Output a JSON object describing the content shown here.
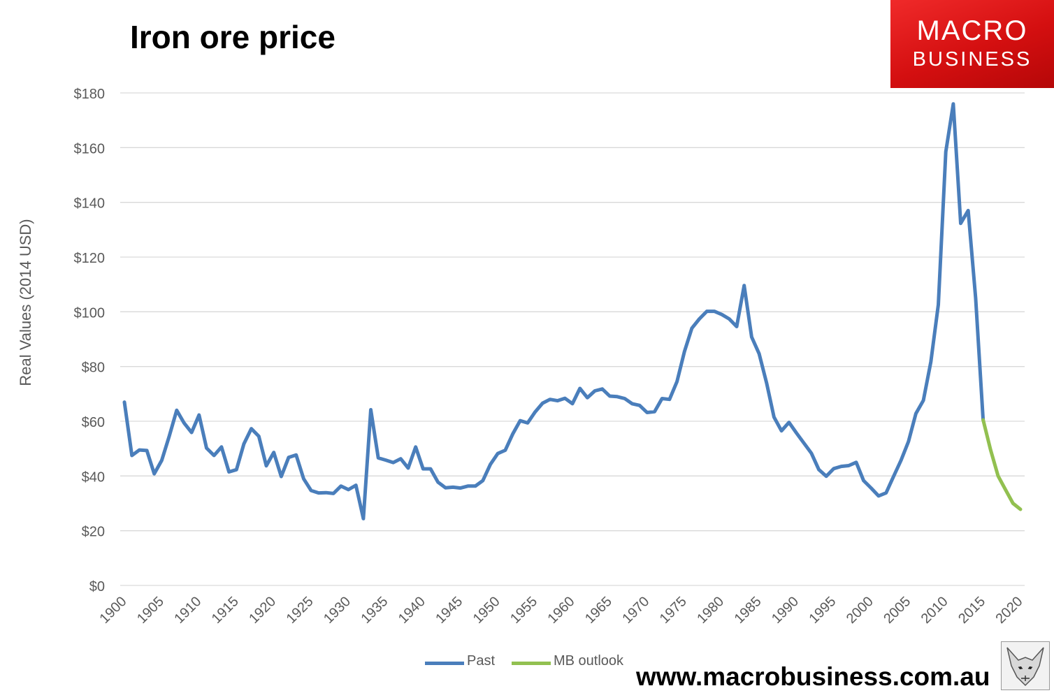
{
  "chart_data": {
    "type": "line",
    "title": "Iron ore price",
    "ylabel": "Real Values (2014 USD)",
    "xlabel": "",
    "xlim": [
      1900,
      2020
    ],
    "ylim": [
      0,
      180
    ],
    "ytick_step": 20,
    "ytick_labels": [
      "$0",
      "$20",
      "$40",
      "$60",
      "$80",
      "$100",
      "$120",
      "$140",
      "$160",
      "$180"
    ],
    "xtick_labels": [
      "1900",
      "1905",
      "1910",
      "1915",
      "1920",
      "1925",
      "1930",
      "1935",
      "1940",
      "1945",
      "1950",
      "1955",
      "1960",
      "1965",
      "1970",
      "1975",
      "1980",
      "1985",
      "1990",
      "1995",
      "2000",
      "2005",
      "2010",
      "2015",
      "2020"
    ],
    "grid": true,
    "legend_position": "bottom",
    "series": [
      {
        "name": "Past",
        "color": "#4a7ebb",
        "x": [
          1900,
          1901,
          1902,
          1903,
          1904,
          1905,
          1906,
          1907,
          1908,
          1909,
          1910,
          1911,
          1912,
          1913,
          1914,
          1915,
          1916,
          1917,
          1918,
          1919,
          1920,
          1921,
          1922,
          1923,
          1924,
          1925,
          1926,
          1927,
          1928,
          1929,
          1930,
          1931,
          1932,
          1933,
          1934,
          1935,
          1936,
          1937,
          1938,
          1939,
          1940,
          1941,
          1942,
          1943,
          1944,
          1945,
          1946,
          1947,
          1948,
          1949,
          1950,
          1951,
          1952,
          1953,
          1954,
          1955,
          1956,
          1957,
          1958,
          1959,
          1960,
          1961,
          1962,
          1963,
          1964,
          1965,
          1966,
          1967,
          1968,
          1969,
          1970,
          1971,
          1972,
          1973,
          1974,
          1975,
          1976,
          1977,
          1978,
          1979,
          1980,
          1981,
          1982,
          1983,
          1984,
          1985,
          1986,
          1987,
          1988,
          1989,
          1990,
          1991,
          1992,
          1993,
          1994,
          1995,
          1996,
          1997,
          1998,
          1999,
          2000,
          2001,
          2002,
          2003,
          2004,
          2005,
          2006,
          2007,
          2008,
          2009,
          2010,
          2011,
          2012,
          2013,
          2014,
          2015
        ],
        "values": [
          67,
          47.5,
          49.5,
          49.3,
          40.8,
          45.7,
          54.5,
          64,
          59.3,
          55.9,
          62.3,
          50.2,
          47.5,
          50.6,
          41.5,
          42.3,
          51.7,
          57.3,
          54.5,
          43.7,
          48.6,
          39.8,
          46.8,
          47.7,
          39,
          34.7,
          33.8,
          33.9,
          33.6,
          36.3,
          35,
          36.6,
          24.4,
          64.2,
          46.6,
          45.8,
          44.9,
          46.3,
          42.9,
          50.6,
          42.6,
          42.6,
          37.7,
          35.7,
          35.9,
          35.6,
          36.3,
          36.3,
          38.3,
          44.2,
          48.2,
          49.4,
          55.3,
          60.2,
          59.4,
          63.4,
          66.6,
          68,
          67.5,
          68.4,
          66.4,
          72,
          68.6,
          71.1,
          71.8,
          69.2,
          69,
          68.3,
          66.4,
          65.8,
          63.2,
          63.5,
          68.3,
          68,
          74.5,
          85.5,
          94,
          97.4,
          100.2,
          100.2,
          99,
          97.4,
          94.6,
          109.6,
          90.8,
          84.7,
          74,
          61.5,
          56.5,
          59.6,
          55.7,
          52,
          48.3,
          42.3,
          39.9,
          42.7,
          43.5,
          43.8,
          45,
          38.3,
          35.6,
          32.7,
          33.8,
          39.8,
          45.7,
          52.6,
          62.8,
          67.6,
          81.7,
          102.6,
          158.5,
          176,
          132.3,
          137,
          105,
          60.5
        ]
      },
      {
        "name": "MB outlook",
        "color": "#92c050",
        "x": [
          2015,
          2016,
          2017,
          2018,
          2019,
          2020
        ],
        "values": [
          60.5,
          49.5,
          40,
          35,
          30,
          27.8
        ]
      }
    ]
  },
  "legend": {
    "past": "Past",
    "outlook": "MB outlook"
  },
  "logo": {
    "line1": "MACRO",
    "line2": "BUSINESS",
    "color": "#d61416"
  },
  "website": "www.macrobusiness.com.au",
  "icons": {
    "corner": "fox-sketch-icon"
  }
}
